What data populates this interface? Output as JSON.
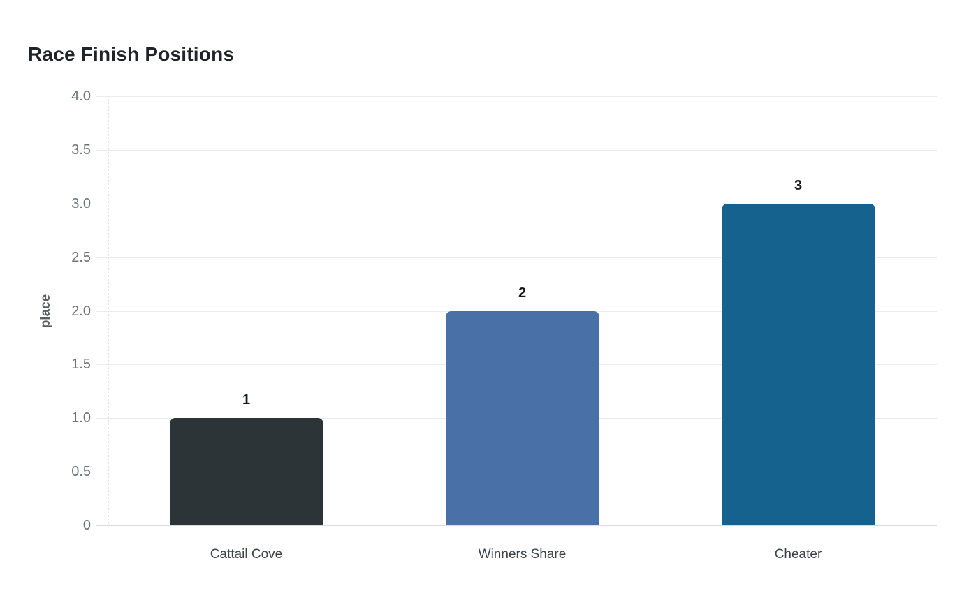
{
  "page": {
    "background": "#ffffff"
  },
  "chart_data": {
    "type": "bar",
    "title": "Race Finish Positions",
    "categories": [
      "Cattail Cove",
      "Winners Share",
      "Cheater"
    ],
    "values": [
      1,
      2,
      3
    ],
    "data_labels": [
      "1",
      "2",
      "3"
    ],
    "bar_colors": [
      "#2d3437",
      "#4a70a8",
      "#16628e"
    ],
    "xlabel": "",
    "ylabel": "place",
    "ylim": [
      0,
      4
    ],
    "yticks": [
      {
        "value": 4.0,
        "label": "4.0"
      },
      {
        "value": 3.5,
        "label": "3.5"
      },
      {
        "value": 3.0,
        "label": "3.0"
      },
      {
        "value": 2.5,
        "label": "2.5"
      },
      {
        "value": 2.0,
        "label": "2.0"
      },
      {
        "value": 1.5,
        "label": "1.5"
      },
      {
        "value": 1.0,
        "label": "1.0"
      },
      {
        "value": 0.5,
        "label": "0.5"
      },
      {
        "value": 0.0,
        "label": "0"
      }
    ],
    "grid": "horizontal",
    "legend": "none",
    "colors": {
      "title_text": "#1f2428",
      "axis_label_text": "#5a5f63",
      "tick_label_text": "#6e7378",
      "category_label_text": "#3c4247",
      "data_label_text": "#15181b",
      "gridline": "#ebebeb",
      "baseline": "#dcdcdc"
    }
  }
}
